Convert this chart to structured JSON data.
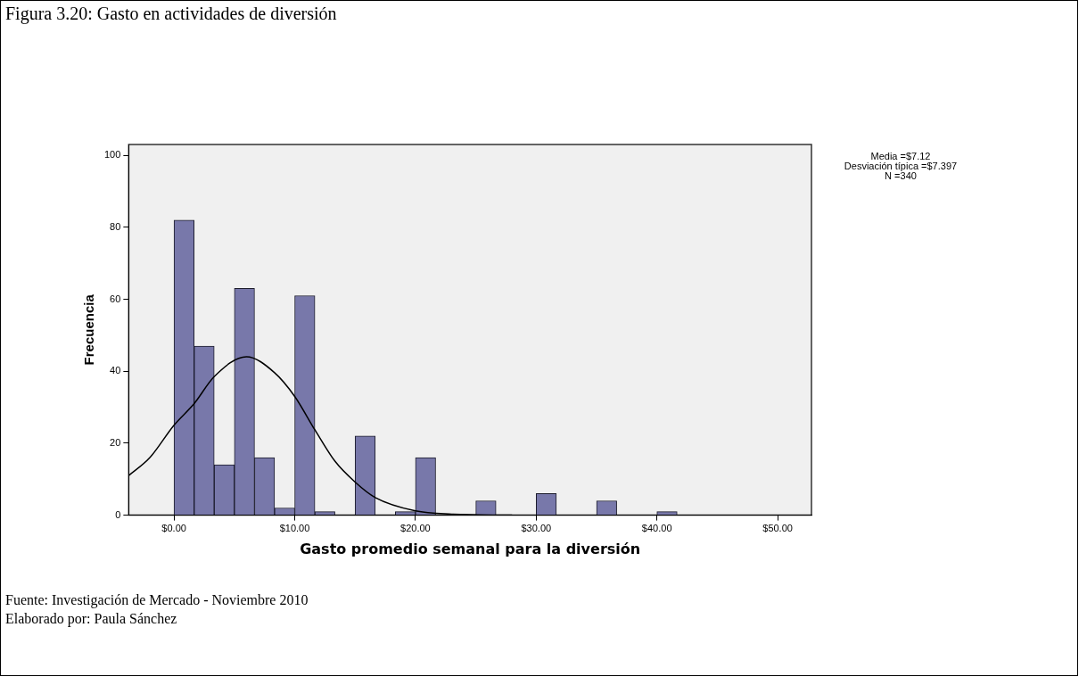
{
  "chart_data": {
    "type": "histogram",
    "title": "Figura 3.20: Gasto en actividades de diversión",
    "xlabel": "Gasto promedio semanal para la diversión",
    "ylabel": "Frecuencia",
    "bins": [
      0,
      1.67,
      3.33,
      5,
      6.67,
      8.33,
      10,
      11.67,
      13.33,
      15,
      16.67,
      18.33,
      20,
      21.67,
      23.33,
      25,
      26.67,
      28.33,
      30,
      31.67,
      33.33,
      35,
      36.67,
      38.33,
      40,
      41.67
    ],
    "values": [
      82,
      47,
      14,
      63,
      16,
      2,
      61,
      1,
      0,
      22,
      0,
      1,
      16,
      0,
      0,
      4,
      0,
      0,
      6,
      0,
      0,
      4,
      0,
      0,
      1
    ],
    "color": "#7878aa",
    "series": [
      {
        "type": "line",
        "color": "#000000",
        "x": [
          -3.75,
          -2,
          0,
          1.67,
          3.33,
          6,
          8.33,
          10,
          11.67,
          13.33,
          15,
          16.67,
          20,
          23,
          28
        ],
        "values": [
          11,
          16,
          25,
          31,
          38.5,
          44,
          39.6,
          33,
          23.7,
          15,
          9.2,
          4.9,
          1.2,
          0.3,
          0
        ]
      }
    ],
    "xlim": [
      -3.75,
      52.8
    ],
    "xticks": [
      {
        "value": 0,
        "label": "$0.00"
      },
      {
        "value": 10,
        "label": "$10.00"
      },
      {
        "value": 20,
        "label": "$20.00"
      },
      {
        "value": 30,
        "label": "$30.00"
      },
      {
        "value": 40,
        "label": "$40.00"
      },
      {
        "value": 50,
        "label": "$50.00"
      }
    ],
    "ylim": [
      0,
      103
    ],
    "yticks": [
      0,
      20,
      40,
      60,
      80,
      100
    ],
    "annotations": [
      "Media =$7.12",
      "Desviación típica =$7.397",
      "N =340",
      "Fuente: Investigación de Mercado - Noviembre 2010",
      "Elaborado por: Paula Sánchez"
    ]
  }
}
